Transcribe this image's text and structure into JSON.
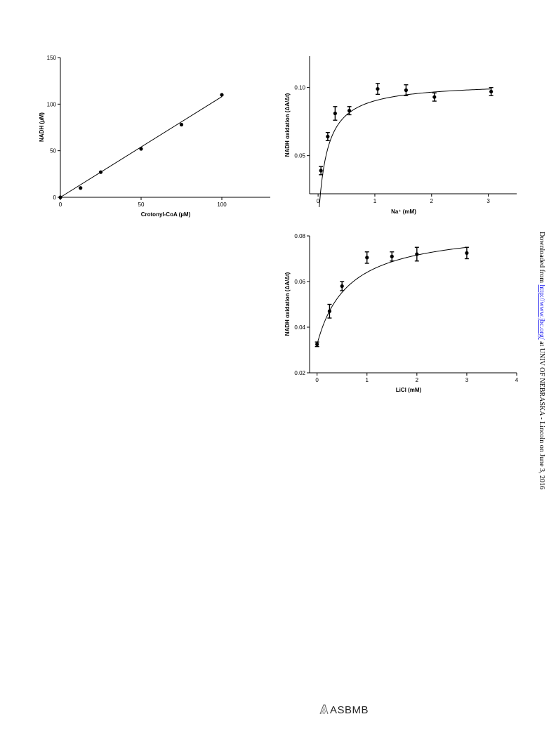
{
  "chart_data": [
    {
      "type": "scatter",
      "xlabel": "Crotonyl-CoA (µM)",
      "ylabel": "NADH (µM)",
      "xlim": [
        0,
        130
      ],
      "ylim": [
        0,
        150
      ],
      "x_ticks": [
        0,
        50,
        100
      ],
      "y_ticks": [
        0,
        50,
        100,
        150
      ],
      "x_tick_labels": [
        "0",
        "50",
        "100"
      ],
      "y_tick_labels": [
        "0",
        "50",
        "100",
        "150"
      ],
      "series": [
        {
          "x": [
            0,
            12.5,
            25,
            50,
            75,
            100
          ],
          "y": [
            0,
            10,
            27,
            52,
            78,
            110
          ]
        }
      ],
      "fit": {
        "kind": "linear",
        "x": [
          0,
          100
        ],
        "y": [
          0,
          108
        ]
      },
      "grid": false
    },
    {
      "type": "scatter",
      "xlabel": "Na⁺ (mM)",
      "ylabel": "NADH oxidation (ΔA/Δt)",
      "xlim": [
        -0.15,
        3.5
      ],
      "ylim": [
        0.022,
        0.123
      ],
      "x_ticks": [
        0,
        1,
        2,
        3
      ],
      "y_ticks": [
        0.05,
        0.1
      ],
      "x_tick_labels": [
        "0",
        "1",
        "2",
        "3"
      ],
      "y_tick_labels": [
        "0.05",
        "0.10"
      ],
      "series": [
        {
          "x": [
            0.05,
            0.17,
            0.3,
            0.55,
            1.05,
            1.55,
            2.05,
            3.05
          ],
          "y": [
            0.039,
            0.064,
            0.081,
            0.083,
            0.099,
            0.098,
            0.093,
            0.097
          ],
          "error": [
            0.003,
            0.003,
            0.005,
            0.003,
            0.004,
            0.004,
            0.003,
            0.003
          ]
        }
      ],
      "fit": {
        "kind": "hyperbola",
        "vmax": 0.1038,
        "km": 0.15,
        "x_range": [
          0.02,
          3.05
        ]
      },
      "grid": false
    },
    {
      "type": "scatter",
      "xlabel": "LiCl (mM)",
      "ylabel": "NADH oxidation (ΔA/Δt)",
      "xlim": [
        -0.15,
        4
      ],
      "ylim": [
        0.02,
        0.08
      ],
      "x_ticks": [
        0,
        1,
        2,
        3,
        4
      ],
      "y_ticks": [
        0.02,
        0.04,
        0.06,
        0.08
      ],
      "x_tick_labels": [
        "0",
        "1",
        "2",
        "3",
        "4"
      ],
      "y_tick_labels": [
        "0.02",
        "0.04",
        "0.06",
        "0.08"
      ],
      "series": [
        {
          "x": [
            0,
            0.25,
            0.5,
            1,
            1.5,
            2,
            3
          ],
          "y": [
            0.0325,
            0.047,
            0.058,
            0.0705,
            0.071,
            0.072,
            0.0725
          ],
          "error": [
            0.001,
            0.003,
            0.002,
            0.0025,
            0.002,
            0.003,
            0.0025
          ]
        }
      ],
      "fit": {
        "kind": "hyperbola_offset",
        "y0": 0.0325,
        "amp": 0.0514,
        "k": 0.63,
        "x_range": [
          0,
          3
        ]
      },
      "grid": false
    }
  ],
  "watermark": {
    "prefix": "Downloaded from ",
    "link": "http://www.jbc.org/",
    "suffix": " at UNIV OF NEBRASKA - Lincoln on June 3, 2016"
  },
  "footer": {
    "logo_text": "ASBMB"
  }
}
